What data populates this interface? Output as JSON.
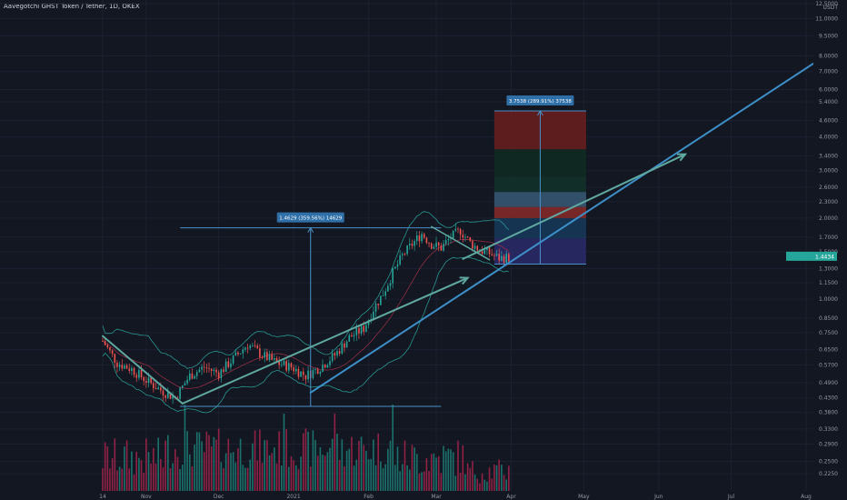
{
  "header": {
    "title": "Aavegotchi GHST Token / Tether, 1D, OKEX"
  },
  "chart_data": {
    "type": "candlestick",
    "title": "Aavegotchi GHST Token / Tether, 1D, OKEX",
    "y_unit": "USDT",
    "y_scale": "log",
    "ylim": [
      0.21,
      12.5
    ],
    "y_ticks": [
      "12.5000",
      "11.0000",
      "9.5000",
      "8.0000",
      "7.0000",
      "6.0000",
      "5.4000",
      "4.6000",
      "4.0000",
      "3.4000",
      "3.0000",
      "2.6000",
      "2.3000",
      "2.0000",
      "1.7000",
      "1.5000",
      "1.3000",
      "1.1500",
      "1.0000",
      "0.8500",
      "0.7500",
      "0.6500",
      "0.5700",
      "0.4900",
      "0.4300",
      "0.3800",
      "0.3300",
      "0.2900",
      "0.2500",
      "0.2250"
    ],
    "x_ticks": [
      "14",
      "Nov",
      "Dec",
      "2021",
      "Feb",
      "Mar",
      "Apr",
      "May",
      "Jun",
      "Jul",
      "Aug"
    ],
    "x_tick_days": [
      0,
      18,
      48,
      79,
      110,
      138,
      169,
      199,
      230,
      260,
      291
    ],
    "last_day": 168,
    "price_path_anchors": [
      [
        0,
        0.7
      ],
      [
        6,
        0.58
      ],
      [
        12,
        0.55
      ],
      [
        18,
        0.5
      ],
      [
        24,
        0.46
      ],
      [
        30,
        0.43
      ],
      [
        36,
        0.52
      ],
      [
        42,
        0.56
      ],
      [
        48,
        0.53
      ],
      [
        54,
        0.6
      ],
      [
        60,
        0.68
      ],
      [
        66,
        0.62
      ],
      [
        72,
        0.58
      ],
      [
        78,
        0.56
      ],
      [
        84,
        0.52
      ],
      [
        90,
        0.56
      ],
      [
        96,
        0.62
      ],
      [
        102,
        0.72
      ],
      [
        108,
        0.78
      ],
      [
        112,
        0.92
      ],
      [
        116,
        1.05
      ],
      [
        120,
        1.25
      ],
      [
        124,
        1.45
      ],
      [
        128,
        1.6
      ],
      [
        132,
        1.75
      ],
      [
        136,
        1.6
      ],
      [
        140,
        1.55
      ],
      [
        144,
        1.7
      ],
      [
        148,
        1.8
      ],
      [
        152,
        1.62
      ],
      [
        156,
        1.52
      ],
      [
        160,
        1.48
      ],
      [
        164,
        1.42
      ],
      [
        168,
        1.43
      ]
    ],
    "current_price_label": "1.4434",
    "measures": [
      {
        "label": "1.4629 (359.56%) 14629",
        "from_price": 0.4,
        "to_price": 1.84,
        "from_day": 32,
        "to_day": 140
      },
      {
        "label": "3.7538 (289.91%) 37538",
        "from_price": 1.35,
        "to_price": 5.0,
        "from_day": 162,
        "to_day": 200
      }
    ],
    "annotations": {
      "down_arrow_1": [
        [
          0,
          0.73
        ],
        [
          33,
          0.41
        ]
      ],
      "up_arrow_1": [
        [
          33,
          0.41
        ],
        [
          151,
          1.2
        ]
      ],
      "trendline": [
        [
          86,
          0.45
        ],
        [
          297,
          7.8
        ]
      ],
      "arrow_2": [
        [
          149,
          1.41
        ],
        [
          241,
          3.45
        ]
      ],
      "down_arrow_2": [
        [
          136,
          1.86
        ],
        [
          160,
          1.4
        ]
      ]
    },
    "range_bands": [
      {
        "from": 1.35,
        "to": 1.68,
        "color": "#2b2a6b"
      },
      {
        "from": 1.68,
        "to": 2.0,
        "color": "#163a5a"
      },
      {
        "from": 2.0,
        "to": 2.2,
        "color": "#8b2a2a"
      },
      {
        "from": 2.2,
        "to": 2.5,
        "color": "#3a5a78"
      },
      {
        "from": 2.5,
        "to": 2.85,
        "color": "#12332a"
      },
      {
        "from": 2.85,
        "to": 3.6,
        "color": "#0f2c22"
      },
      {
        "from": 3.6,
        "to": 5.0,
        "color": "#6b1f1f"
      }
    ],
    "colors": {
      "up": "#26a69a",
      "down": "#ef5350",
      "annotation": "#4a90c8",
      "arrow": "#5fa8a0",
      "bollinger": "#2aa39b"
    },
    "grid": true
  }
}
